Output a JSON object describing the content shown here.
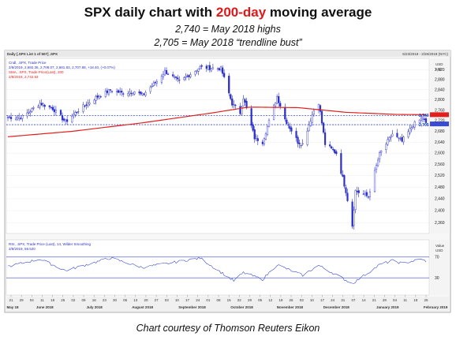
{
  "header": {
    "title_prefix": "SPX daily chart with ",
    "title_highlight": "200-day",
    "title_suffix": " moving average",
    "subtitle_1": "2,740 = May 2018 highs",
    "subtitle_2": "2,705 = May 2018 “trendline bust”",
    "credit": "Chart courtesy of Thomson Reuters Eikon"
  },
  "panel": {
    "header_left": "Daily [.SPX List 1 of 507] .SPX",
    "header_right": "5/23/2018 - 2/26/2019 (NYC)",
    "legend_1": "Cndl, .SPX, Trade Price",
    "legend_1_values": "2/8/2019, 2,692.36, 2,708.07, 2,681.83, 2,707.88, +18.40, (+0.07%)",
    "legend_2": "SMA, .SPX, Trade Price(Last), 200",
    "legend_2_values": "2/8/2019, 2,742.93",
    "price_unit": "USD",
    "price_scale_label": "Log",
    "rsi_legend": "RSI, .SPX, Trade Price (Last), 14, Wilder Smoothing",
    "rsi_legend_values": "2/8/2019, 59.520",
    "rsi_unit_1": "Value",
    "rsi_unit_2": "USD",
    "marker_2740": "2,740",
    "marker_2705": "2,705"
  },
  "colors": {
    "candle": "#2a2fc8",
    "sma": "#e0201c",
    "guide": "#3a4bd0",
    "rsi": "#3a4bd0",
    "title_highlight": "#e01818"
  },
  "chart_data": {
    "type": "candlestick",
    "x_range": [
      "2018-05-23",
      "2019-02-08"
    ],
    "y_scale": "log",
    "y_range": [
      2330,
      2960
    ],
    "y_ticks": [
      2360,
      2400,
      2440,
      2480,
      2520,
      2560,
      2600,
      2640,
      2680,
      2720,
      2760,
      2800,
      2840,
      2880,
      2920
    ],
    "y_tick_labels": [
      "2,360",
      "2,400",
      "2,440",
      "2,480",
      "2,520",
      "2,560",
      "2,600",
      "2,640",
      "2,680",
      "2,720",
      "2,760",
      "2,800",
      "2,840",
      "2,880",
      "2,920"
    ],
    "levels": [
      {
        "label": "2,740",
        "value": 2740
      },
      {
        "label": "2,705",
        "value": 2705
      }
    ],
    "last_sma_value": 2742.93,
    "last_close": 2707.88,
    "close_anchors": [
      {
        "date": "2018-05-23",
        "close": 2733
      },
      {
        "date": "2018-06-01",
        "close": 2734
      },
      {
        "date": "2018-06-12",
        "close": 2787
      },
      {
        "date": "2018-06-20",
        "close": 2767
      },
      {
        "date": "2018-06-28",
        "close": 2716
      },
      {
        "date": "2018-07-06",
        "close": 2760
      },
      {
        "date": "2018-07-17",
        "close": 2809
      },
      {
        "date": "2018-07-26",
        "close": 2838
      },
      {
        "date": "2018-08-02",
        "close": 2827
      },
      {
        "date": "2018-08-10",
        "close": 2833
      },
      {
        "date": "2018-08-15",
        "close": 2818
      },
      {
        "date": "2018-08-24",
        "close": 2874
      },
      {
        "date": "2018-08-29",
        "close": 2914
      },
      {
        "date": "2018-09-07",
        "close": 2871
      },
      {
        "date": "2018-09-20",
        "close": 2930
      },
      {
        "date": "2018-10-03",
        "close": 2925
      },
      {
        "date": "2018-10-10",
        "close": 2785
      },
      {
        "date": "2018-10-15",
        "close": 2750
      },
      {
        "date": "2018-10-17",
        "close": 2809
      },
      {
        "date": "2018-10-24",
        "close": 2656
      },
      {
        "date": "2018-10-29",
        "close": 2641
      },
      {
        "date": "2018-11-07",
        "close": 2813
      },
      {
        "date": "2018-11-12",
        "close": 2726
      },
      {
        "date": "2018-11-20",
        "close": 2641
      },
      {
        "date": "2018-11-23",
        "close": 2633
      },
      {
        "date": "2018-11-30",
        "close": 2760
      },
      {
        "date": "2018-12-03",
        "close": 2790
      },
      {
        "date": "2018-12-07",
        "close": 2633
      },
      {
        "date": "2018-12-14",
        "close": 2600
      },
      {
        "date": "2018-12-20",
        "close": 2467
      },
      {
        "date": "2018-12-24",
        "close": 2351
      },
      {
        "date": "2018-12-26",
        "close": 2467
      },
      {
        "date": "2019-01-03",
        "close": 2447
      },
      {
        "date": "2019-01-10",
        "close": 2596
      },
      {
        "date": "2019-01-18",
        "close": 2670
      },
      {
        "date": "2019-01-24",
        "close": 2642
      },
      {
        "date": "2019-01-31",
        "close": 2704
      },
      {
        "date": "2019-02-06",
        "close": 2731
      },
      {
        "date": "2019-02-08",
        "close": 2707.88
      }
    ],
    "sma_anchors": [
      {
        "date": "2018-05-23",
        "value": 2660
      },
      {
        "date": "2018-07-02",
        "value": 2680
      },
      {
        "date": "2018-08-15",
        "value": 2712
      },
      {
        "date": "2018-09-28",
        "value": 2750
      },
      {
        "date": "2018-10-20",
        "value": 2772
      },
      {
        "date": "2018-11-20",
        "value": 2770
      },
      {
        "date": "2018-12-20",
        "value": 2752
      },
      {
        "date": "2019-01-20",
        "value": 2744
      },
      {
        "date": "2019-02-08",
        "value": 2742.93
      }
    ],
    "rsi": {
      "name": "RSI",
      "period": 14,
      "last_value": 59.52,
      "levels": [
        70,
        30
      ],
      "anchors": [
        {
          "date": "2018-05-23",
          "value": 52
        },
        {
          "date": "2018-06-12",
          "value": 66
        },
        {
          "date": "2018-06-28",
          "value": 44
        },
        {
          "date": "2018-07-26",
          "value": 68
        },
        {
          "date": "2018-08-15",
          "value": 50
        },
        {
          "date": "2018-09-20",
          "value": 68
        },
        {
          "date": "2018-10-11",
          "value": 24
        },
        {
          "date": "2018-10-17",
          "value": 40
        },
        {
          "date": "2018-10-29",
          "value": 27
        },
        {
          "date": "2018-11-07",
          "value": 55
        },
        {
          "date": "2018-11-23",
          "value": 35
        },
        {
          "date": "2018-12-03",
          "value": 54
        },
        {
          "date": "2018-12-24",
          "value": 19
        },
        {
          "date": "2019-01-10",
          "value": 55
        },
        {
          "date": "2019-01-18",
          "value": 63
        },
        {
          "date": "2019-01-24",
          "value": 58
        },
        {
          "date": "2019-02-06",
          "value": 66
        },
        {
          "date": "2019-02-08",
          "value": 59.52
        }
      ]
    },
    "x_axis": {
      "day_ticks": [
        "21",
        "29",
        "04",
        "11",
        "18",
        "25",
        "02",
        "09",
        "16",
        "23",
        "30",
        "06",
        "13",
        "20",
        "27",
        "03",
        "10",
        "17",
        "24",
        "01",
        "08",
        "15",
        "22",
        "29",
        "05",
        "12",
        "19",
        "26",
        "03",
        "10",
        "17",
        "24",
        "31",
        "07",
        "14",
        "21",
        "28",
        "04",
        "11",
        "18",
        "25"
      ],
      "month_labels": [
        {
          "label": "May 18",
          "date": "2018-05-23"
        },
        {
          "label": "June 2018",
          "date": "2018-06-15"
        },
        {
          "label": "July 2018",
          "date": "2018-07-16"
        },
        {
          "label": "August 2018",
          "date": "2018-08-15"
        },
        {
          "label": "September 2018",
          "date": "2018-09-15"
        },
        {
          "label": "October 2018",
          "date": "2018-10-16"
        },
        {
          "label": "November 2018",
          "date": "2018-11-15"
        },
        {
          "label": "December 2018",
          "date": "2018-12-14"
        },
        {
          "label": "January 2019",
          "date": "2019-01-15"
        },
        {
          "label": "February 2019",
          "date": "2019-02-14"
        }
      ]
    }
  }
}
